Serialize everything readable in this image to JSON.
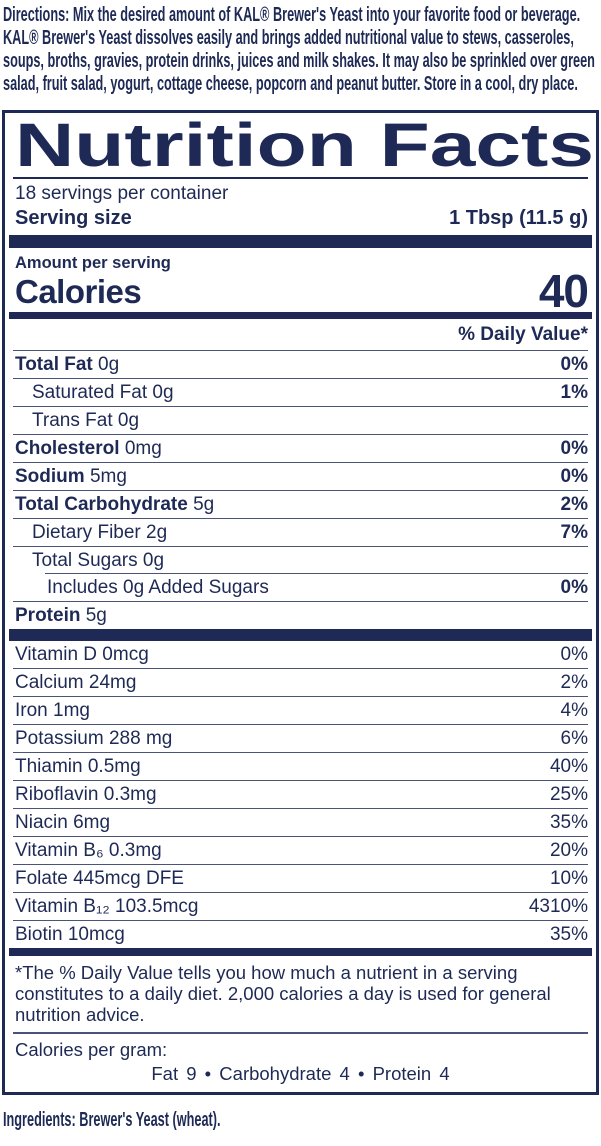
{
  "colors": {
    "navy": "#1e2a55",
    "hairline": "#4a5378",
    "background": "#ffffff"
  },
  "directions": {
    "label": "Directions:",
    "text": "Mix the desired amount of KAL® Brewer's Yeast into your favorite food or beverage. KAL® Brewer's Yeast dissolves easily and brings added nutritional value to stews, casseroles, soups, broths, gravies, protein drinks, juices and milk shakes. It may also be sprinkled over green salad, fruit salad, yogurt, cottage cheese, popcorn and peanut butter. Store in a cool, dry place."
  },
  "nutrition_facts": {
    "title": "Nutrition Facts",
    "servings_per_container": "18 servings per container",
    "serving_size_label": "Serving size",
    "serving_size_value": "1 Tbsp (11.5 g)",
    "amount_per_serving": "Amount per serving",
    "calories_label": "Calories",
    "calories_value": "40",
    "daily_value_header": "% Daily Value*",
    "main_rows": [
      {
        "name": "Total Fat",
        "amount": "0g",
        "dv": "0%",
        "bold": true,
        "dv_bold": true,
        "indent": 0,
        "sep": "none"
      },
      {
        "name": "Saturated Fat",
        "amount": "0g",
        "dv": "1%",
        "bold": false,
        "dv_bold": true,
        "indent": 1,
        "sep": "full"
      },
      {
        "name": "Trans Fat",
        "amount": "0g",
        "dv": "",
        "bold": false,
        "dv_bold": false,
        "indent": 1,
        "sep": "full"
      },
      {
        "name": "Cholesterol",
        "amount": "0mg",
        "dv": "0%",
        "bold": true,
        "dv_bold": true,
        "indent": 0,
        "sep": "full"
      },
      {
        "name": "Sodium",
        "amount": "5mg",
        "dv": "0%",
        "bold": true,
        "dv_bold": true,
        "indent": 0,
        "sep": "full"
      },
      {
        "name": "Total Carbohydrate",
        "amount": "5g",
        "dv": "2%",
        "bold": true,
        "dv_bold": true,
        "indent": 0,
        "sep": "full"
      },
      {
        "name": "Dietary Fiber",
        "amount": "2g",
        "dv": "7%",
        "bold": false,
        "dv_bold": true,
        "indent": 1,
        "sep": "full"
      },
      {
        "name": "Total Sugars",
        "amount": "0g",
        "dv": "",
        "bold": false,
        "dv_bold": false,
        "indent": 1,
        "sep": "full"
      },
      {
        "name": "Includes 0g Added Sugars",
        "amount": "",
        "dv": "0%",
        "bold": false,
        "dv_bold": true,
        "indent": 2,
        "sep": "indent"
      },
      {
        "name": "Protein",
        "amount": "5g",
        "dv": "",
        "bold": true,
        "dv_bold": false,
        "indent": 0,
        "sep": "full"
      }
    ],
    "vitamin_rows": [
      {
        "name": "Vitamin D",
        "amount": "0mcg",
        "dv": "0%",
        "bold": false,
        "dv_bold": false,
        "indent": 0,
        "sep": "none"
      },
      {
        "name": "Calcium",
        "amount": "24mg",
        "dv": "2%",
        "bold": false,
        "dv_bold": false,
        "indent": 0,
        "sep": "full"
      },
      {
        "name": "Iron",
        "amount": "1mg",
        "dv": "4%",
        "bold": false,
        "dv_bold": false,
        "indent": 0,
        "sep": "full"
      },
      {
        "name": "Potassium",
        "amount": "288 mg",
        "dv": "6%",
        "bold": false,
        "dv_bold": false,
        "indent": 0,
        "sep": "full"
      },
      {
        "name": "Thiamin",
        "amount": "0.5mg",
        "dv": "40%",
        "bold": false,
        "dv_bold": false,
        "indent": 0,
        "sep": "full"
      },
      {
        "name": "Riboflavin",
        "amount": "0.3mg",
        "dv": "25%",
        "bold": false,
        "dv_bold": false,
        "indent": 0,
        "sep": "full"
      },
      {
        "name": "Niacin",
        "amount": "6mg",
        "dv": "35%",
        "bold": false,
        "dv_bold": false,
        "indent": 0,
        "sep": "full"
      },
      {
        "name": "Vitamin B₆",
        "amount": "0.3mg",
        "dv": "20%",
        "bold": false,
        "dv_bold": false,
        "indent": 0,
        "sep": "full"
      },
      {
        "name": "Folate",
        "amount": "445mcg DFE",
        "dv": "10%",
        "bold": false,
        "dv_bold": false,
        "indent": 0,
        "sep": "full"
      },
      {
        "name": "Vitamin B₁₂",
        "amount": "103.5mcg",
        "dv": "4310%",
        "bold": false,
        "dv_bold": false,
        "indent": 0,
        "sep": "full"
      },
      {
        "name": "Biotin",
        "amount": "10mcg",
        "dv": "35%",
        "bold": false,
        "dv_bold": false,
        "indent": 0,
        "sep": "full"
      }
    ],
    "footnote": "*The % Daily Value tells you how much a nutrient in a serving constitutes to a daily diet. 2,000 calories a day is used for general nutrition advice.",
    "calories_per_gram_label": "Calories per gram:",
    "calories_per_gram_values": "Fat 9  •  Carbohydrate 4  •  Protein 4"
  },
  "ingredients": {
    "label": "Ingredients:",
    "text": "Brewer's Yeast (wheat)."
  }
}
